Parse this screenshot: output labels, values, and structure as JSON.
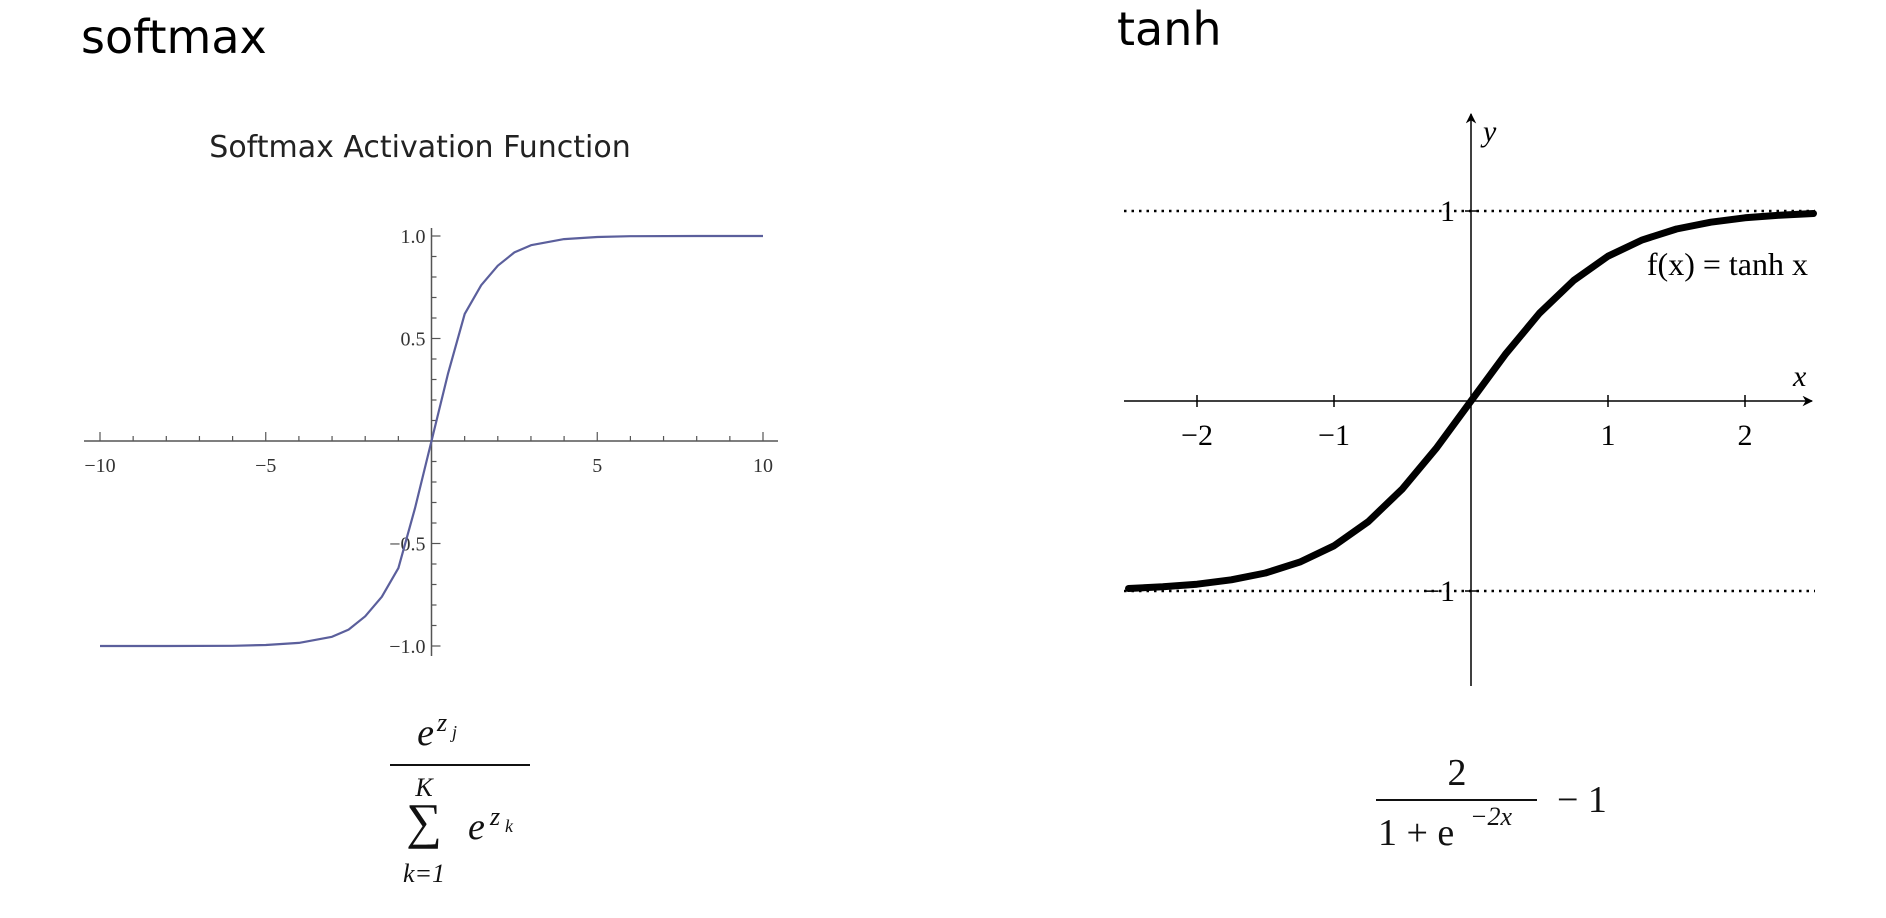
{
  "headings": {
    "left": "softmax",
    "right": "tanh"
  },
  "formulas": {
    "softmax": {
      "numerator_base": "e",
      "numerator_exp_var": "z",
      "numerator_exp_sub": "j",
      "sum_upper": "K",
      "sum_symbol": "∑",
      "sum_lower": "k=1",
      "denominator_base": "e",
      "denominator_exp_var": "z",
      "denominator_exp_sub": "k"
    },
    "tanh": {
      "numerator": "2",
      "denominator_prefix": "1 + e",
      "denominator_exp": "−2x",
      "suffix": "− 1"
    }
  },
  "chart_data": [
    {
      "type": "line",
      "title": "Softmax Activation Function",
      "xlabel": "",
      "ylabel": "",
      "xlim": [
        -10,
        10
      ],
      "ylim": [
        -1.0,
        1.0
      ],
      "x_ticks": [
        -10,
        -5,
        5,
        10
      ],
      "x_tick_labels": [
        "−10",
        "−5",
        "5",
        "10"
      ],
      "y_ticks": [
        1.0,
        0.5,
        -0.5,
        -1.0
      ],
      "y_tick_labels": [
        "1.0",
        "0.5",
        "−0.5",
        "−1.0"
      ],
      "series": [
        {
          "color": "#5b5f9c",
          "x": [
            -10,
            -8,
            -6,
            -5,
            -4,
            -3,
            -2.5,
            -2,
            -1.5,
            -1,
            -0.5,
            0,
            0.5,
            1,
            1.5,
            2,
            2.5,
            3,
            4,
            5,
            6,
            8,
            10
          ],
          "y": [
            -1.0,
            -1.0,
            -0.999,
            -0.995,
            -0.985,
            -0.955,
            -0.92,
            -0.855,
            -0.76,
            -0.62,
            -0.33,
            0.0,
            0.33,
            0.62,
            0.76,
            0.855,
            0.92,
            0.955,
            0.985,
            0.995,
            0.999,
            1.0,
            1.0
          ]
        }
      ],
      "grid": false,
      "legend": "none"
    },
    {
      "type": "line",
      "title": "",
      "xlabel": "x",
      "ylabel": "y",
      "xlim": [
        -2.5,
        2.5
      ],
      "ylim": [
        -1.5,
        1.5
      ],
      "x_ticks": [
        -2,
        -1,
        1,
        2
      ],
      "x_tick_labels": [
        "−2",
        "−1",
        "1",
        "2"
      ],
      "y_ticks": [
        1,
        -1
      ],
      "y_tick_labels": [
        "1",
        "−1"
      ],
      "asymptotes": [
        1,
        -1
      ],
      "annotation": "f(x) = tanh x",
      "series": [
        {
          "color": "#000000",
          "x": [
            -2.5,
            -2.25,
            -2,
            -1.75,
            -1.5,
            -1.25,
            -1,
            -0.75,
            -0.5,
            -0.25,
            0,
            0.25,
            0.5,
            0.75,
            1,
            1.25,
            1.5,
            1.75,
            2,
            2.25,
            2.5
          ],
          "y": [
            -0.987,
            -0.978,
            -0.964,
            -0.941,
            -0.905,
            -0.848,
            -0.762,
            -0.635,
            -0.462,
            -0.245,
            0.0,
            0.245,
            0.462,
            0.635,
            0.762,
            0.848,
            0.905,
            0.941,
            0.964,
            0.978,
            0.987
          ]
        }
      ],
      "grid": false,
      "legend": "none"
    }
  ]
}
